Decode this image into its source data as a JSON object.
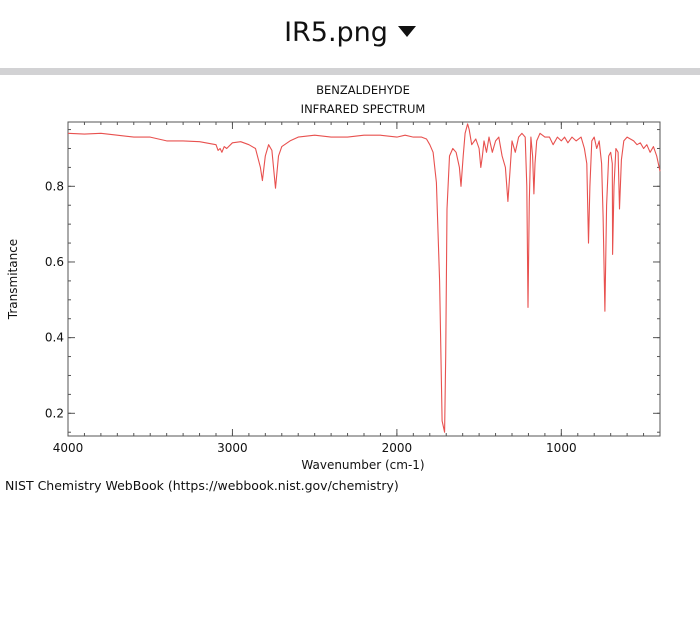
{
  "header": {
    "file_name": "IR5.png",
    "caret_icon": "caret-down-icon"
  },
  "chart_data": {
    "type": "line",
    "title": "BENZALDEHYDE",
    "subtitle": "INFRARED SPECTRUM",
    "xlabel": "Wavenumber (cm-1)",
    "ylabel": "Transmitance",
    "xlim": [
      4000,
      400
    ],
    "ylim": [
      0.14,
      0.97
    ],
    "x_ticks": [
      4000,
      3000,
      2000,
      1000
    ],
    "x_tick_labels": [
      "4000",
      "3000",
      "2000",
      "1000"
    ],
    "y_ticks": [
      0.2,
      0.4,
      0.6,
      0.8
    ],
    "y_tick_labels": [
      "0.2",
      "0.4",
      "0.6",
      "0.8"
    ],
    "grid": false,
    "line_color": "#e8514f",
    "series": [
      {
        "name": "",
        "x": [
          4000,
          3900,
          3800,
          3700,
          3600,
          3500,
          3400,
          3300,
          3200,
          3100,
          3087,
          3075,
          3064,
          3050,
          3035,
          3000,
          2950,
          2900,
          2860,
          2830,
          2818,
          2800,
          2780,
          2760,
          2738,
          2720,
          2700,
          2650,
          2600,
          2500,
          2400,
          2300,
          2200,
          2100,
          2000,
          1950,
          1900,
          1850,
          1820,
          1800,
          1780,
          1760,
          1740,
          1725,
          1710,
          1703,
          1695,
          1680,
          1660,
          1640,
          1620,
          1610,
          1597,
          1585,
          1570,
          1560,
          1545,
          1520,
          1500,
          1490,
          1480,
          1470,
          1455,
          1440,
          1420,
          1400,
          1380,
          1360,
          1340,
          1325,
          1312,
          1300,
          1280,
          1260,
          1240,
          1220,
          1210,
          1203,
          1195,
          1185,
          1175,
          1167,
          1160,
          1150,
          1130,
          1100,
          1072,
          1050,
          1024,
          1000,
          980,
          960,
          935,
          910,
          880,
          860,
          845,
          835,
          826,
          815,
          800,
          785,
          770,
          755,
          746,
          735,
          725,
          712,
          700,
          690,
          688,
          680,
          668,
          655,
          646,
          635,
          620,
          600,
          580,
          560,
          540,
          520,
          500,
          480,
          460,
          440,
          420,
          400
        ],
        "y": [
          0.94,
          0.938,
          0.94,
          0.935,
          0.93,
          0.93,
          0.92,
          0.92,
          0.918,
          0.91,
          0.895,
          0.9,
          0.89,
          0.905,
          0.9,
          0.915,
          0.918,
          0.91,
          0.9,
          0.85,
          0.815,
          0.88,
          0.91,
          0.895,
          0.795,
          0.88,
          0.905,
          0.92,
          0.93,
          0.935,
          0.93,
          0.93,
          0.935,
          0.935,
          0.93,
          0.935,
          0.93,
          0.93,
          0.925,
          0.91,
          0.89,
          0.81,
          0.55,
          0.18,
          0.15,
          0.35,
          0.74,
          0.88,
          0.9,
          0.89,
          0.85,
          0.8,
          0.88,
          0.94,
          0.965,
          0.95,
          0.91,
          0.925,
          0.9,
          0.85,
          0.88,
          0.92,
          0.89,
          0.93,
          0.89,
          0.92,
          0.93,
          0.88,
          0.85,
          0.76,
          0.84,
          0.92,
          0.89,
          0.93,
          0.94,
          0.93,
          0.8,
          0.48,
          0.76,
          0.93,
          0.88,
          0.78,
          0.86,
          0.92,
          0.94,
          0.93,
          0.93,
          0.91,
          0.93,
          0.92,
          0.93,
          0.915,
          0.93,
          0.92,
          0.93,
          0.9,
          0.86,
          0.65,
          0.8,
          0.92,
          0.93,
          0.9,
          0.92,
          0.86,
          0.72,
          0.47,
          0.75,
          0.88,
          0.89,
          0.86,
          0.62,
          0.8,
          0.9,
          0.89,
          0.74,
          0.87,
          0.92,
          0.93,
          0.925,
          0.92,
          0.91,
          0.915,
          0.9,
          0.91,
          0.89,
          0.905,
          0.88,
          0.84
        ]
      }
    ]
  },
  "footer": {
    "credit": "NIST Chemistry WebBook (https://webbook.nist.gov/chemistry)"
  }
}
